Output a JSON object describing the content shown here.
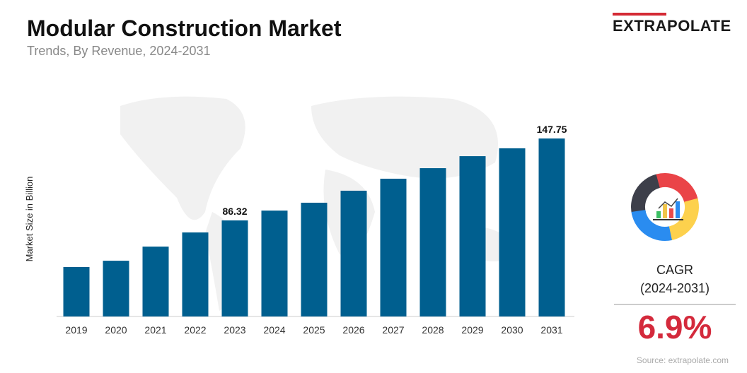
{
  "header": {
    "title": "Modular Construction Market",
    "subtitle": "Trends, By Revenue, 2024-2031"
  },
  "logo": {
    "text": "EXTRAPOLATE"
  },
  "cagr": {
    "label": "CAGR",
    "period": "(2024-2031)",
    "value": "6.9%"
  },
  "source": "Source: extrapolate.com",
  "colors": {
    "bar": "#005f8f",
    "accent": "#d42a3c"
  },
  "chart_data": {
    "type": "bar",
    "title": "",
    "xlabel": "",
    "ylabel": "Market Size in Billion",
    "categories": [
      "2019",
      "2020",
      "2021",
      "2022",
      "2023",
      "2024",
      "2025",
      "2026",
      "2027",
      "2028",
      "2029",
      "2030",
      "2031"
    ],
    "values": [
      51.4,
      56.1,
      66.7,
      77.3,
      86.32,
      93.7,
      99.6,
      108.6,
      117.6,
      125.5,
      134.5,
      140.4,
      147.75
    ],
    "data_labels": {
      "2023": "86.32",
      "2031": "147.75"
    },
    "grid": false
  }
}
